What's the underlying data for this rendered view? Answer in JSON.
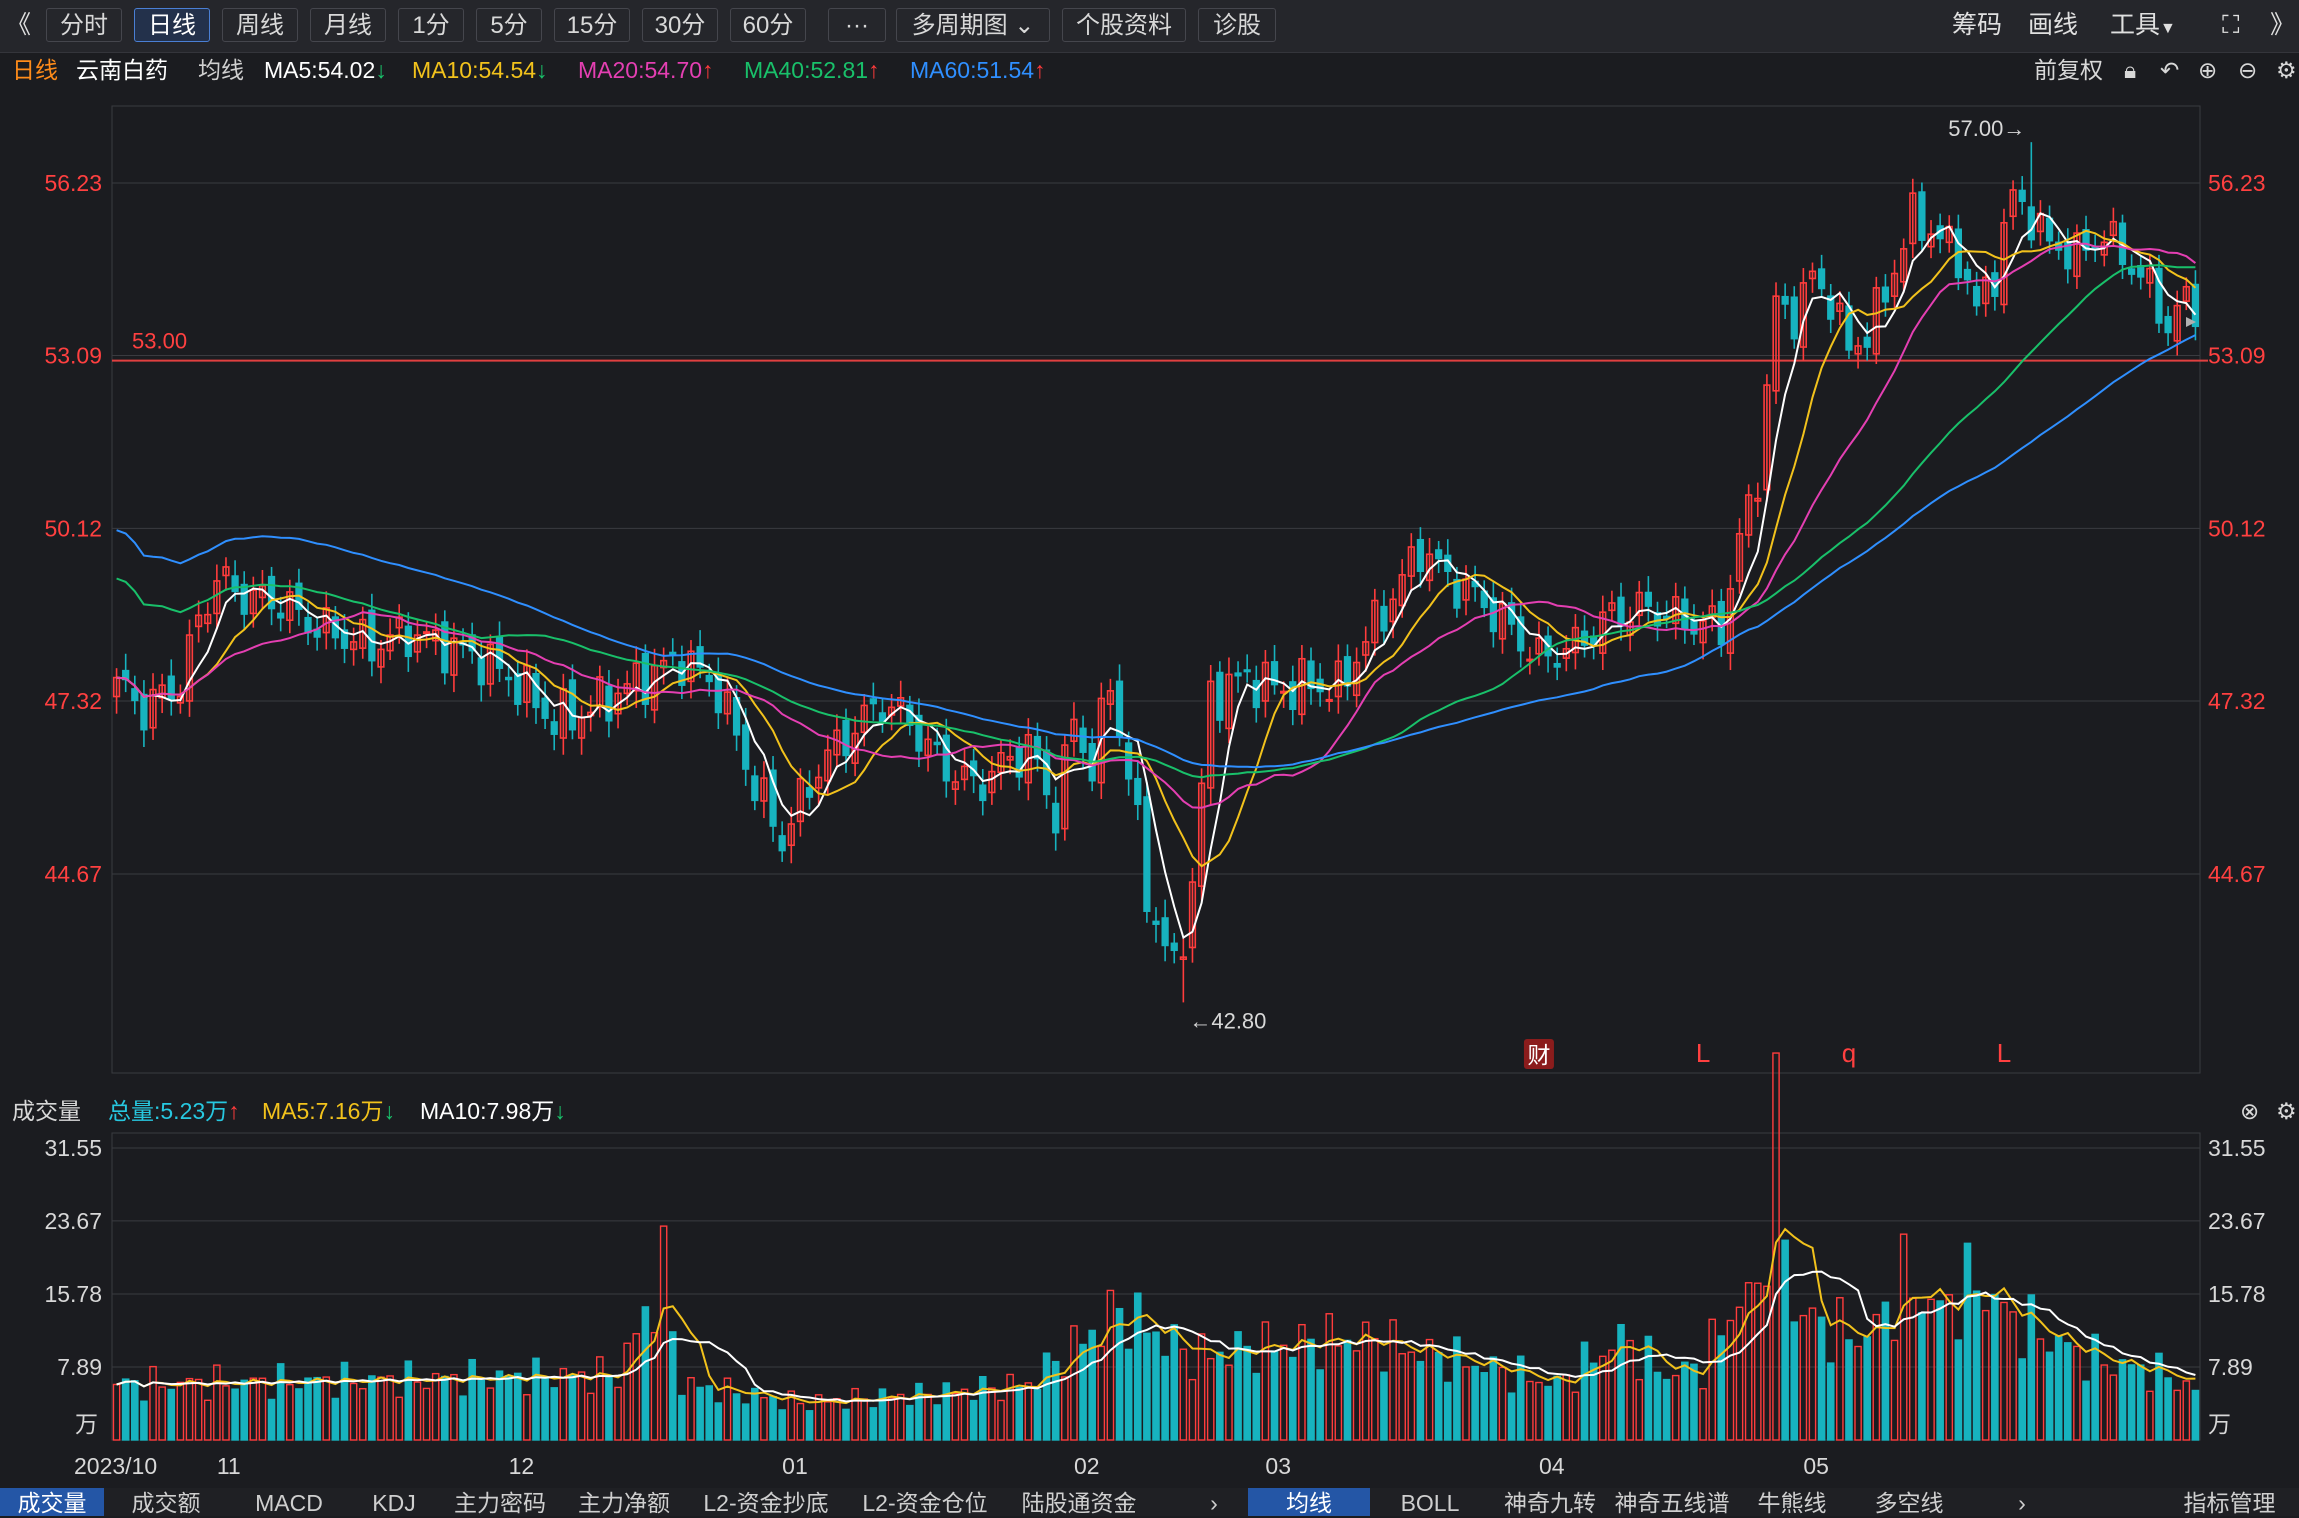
{
  "toolbar": {
    "back_glyph": "《",
    "periods": [
      "分时",
      "日线",
      "周线",
      "月线",
      "1分",
      "5分",
      "15分",
      "30分",
      "60分"
    ],
    "active_period": "日线",
    "more_label": "···",
    "multi_period_label": "多周期图",
    "info_label": "个股资料",
    "diagnose_label": "诊股",
    "chips_label": "筹码",
    "draw_label": "画线",
    "tools_label": "工具",
    "fullscreen_icon": "fullscreen-icon",
    "expand_glyph": "》"
  },
  "header": {
    "period": "日线",
    "stock_name": "云南白药",
    "ma_title": "均线",
    "ma": [
      {
        "label": "MA5:54.02",
        "arrow": "↓",
        "color": "#ffffff",
        "arrow_color": "#19c06a"
      },
      {
        "label": "MA10:54.54",
        "arrow": "↓",
        "color": "#f2c21c",
        "arrow_color": "#19c06a"
      },
      {
        "label": "MA20:54.70",
        "arrow": "↑",
        "color": "#e43fb2",
        "arrow_color": "#ff3b3b"
      },
      {
        "label": "MA40:52.81",
        "arrow": "↑",
        "color": "#19c06a",
        "arrow_color": "#ff3b3b"
      },
      {
        "label": "MA60:51.54",
        "arrow": "↑",
        "color": "#2f8fff",
        "arrow_color": "#ff3b3b"
      }
    ],
    "adjust_label": "前复权",
    "icons": [
      "lock-icon",
      "undo-icon",
      "zoom-in-icon",
      "zoom-out-icon",
      "settings-icon"
    ]
  },
  "volume_header": {
    "title": "成交量",
    "total": {
      "label": "总量:5.23万",
      "arrow": "↑",
      "color": "#27c8e0",
      "arrow_color": "#ff3b3b"
    },
    "ma5": {
      "label": "MA5:7.16万",
      "arrow": "↓",
      "color": "#f2c21c",
      "arrow_color": "#19c06a"
    },
    "ma10": {
      "label": "MA10:7.98万",
      "arrow": "↓",
      "color": "#ffffff",
      "arrow_color": "#19c06a"
    }
  },
  "bottom_tabs_left": [
    "成交量",
    "成交额",
    "MACD",
    "KDJ",
    "主力密码",
    "主力净额",
    "L2-资金抄底",
    "L2-资金仓位",
    "陆股通资金"
  ],
  "bottom_tabs_left_active": "成交量",
  "bottom_tabs_right": [
    "均线",
    "BOLL",
    "神奇九转",
    "神奇五线谱",
    "牛熊线",
    "多空线"
  ],
  "bottom_tabs_right_active": "均线",
  "indicator_manage_label": "指标管理",
  "colors": {
    "up": "#ff3c3c",
    "down": "#17b3bf",
    "ma5": "#ffffff",
    "ma10": "#f2c21c",
    "ma20": "#e43fb2",
    "ma40": "#19c06a",
    "ma60": "#2f8fff",
    "grid": "#3a3b40",
    "hline": "#e04040"
  },
  "chart_data": {
    "type": "candlestick",
    "price_ticks": [
      "56.23",
      "53.09",
      "50.12",
      "47.32",
      "44.67"
    ],
    "price_range": [
      42.8,
      57.0
    ],
    "volume_ticks": [
      "31.55",
      "23.67",
      "15.78",
      "7.89"
    ],
    "volume_unit": "万",
    "x_labels": [
      {
        "label": "2023/10",
        "index": 0
      },
      {
        "label": "11",
        "index": 11
      },
      {
        "label": "12",
        "index": 43
      },
      {
        "label": "01",
        "index": 73
      },
      {
        "label": "02",
        "index": 105
      },
      {
        "label": "03",
        "index": 126
      },
      {
        "label": "04",
        "index": 156
      },
      {
        "label": "05",
        "index": 185
      }
    ],
    "high_marker": "57.00→",
    "low_marker": "←42.80",
    "horizontal_line": {
      "label": "53.00",
      "value": 53.0
    },
    "event_markers": [
      {
        "label": "财",
        "index": 156,
        "boxed": true
      },
      {
        "label": "L",
        "index": 174,
        "boxed": false
      },
      {
        "label": "q",
        "index": 190,
        "boxed": false
      },
      {
        "label": "L",
        "index": 207,
        "boxed": false
      }
    ],
    "candles": [],
    "volume": []
  }
}
